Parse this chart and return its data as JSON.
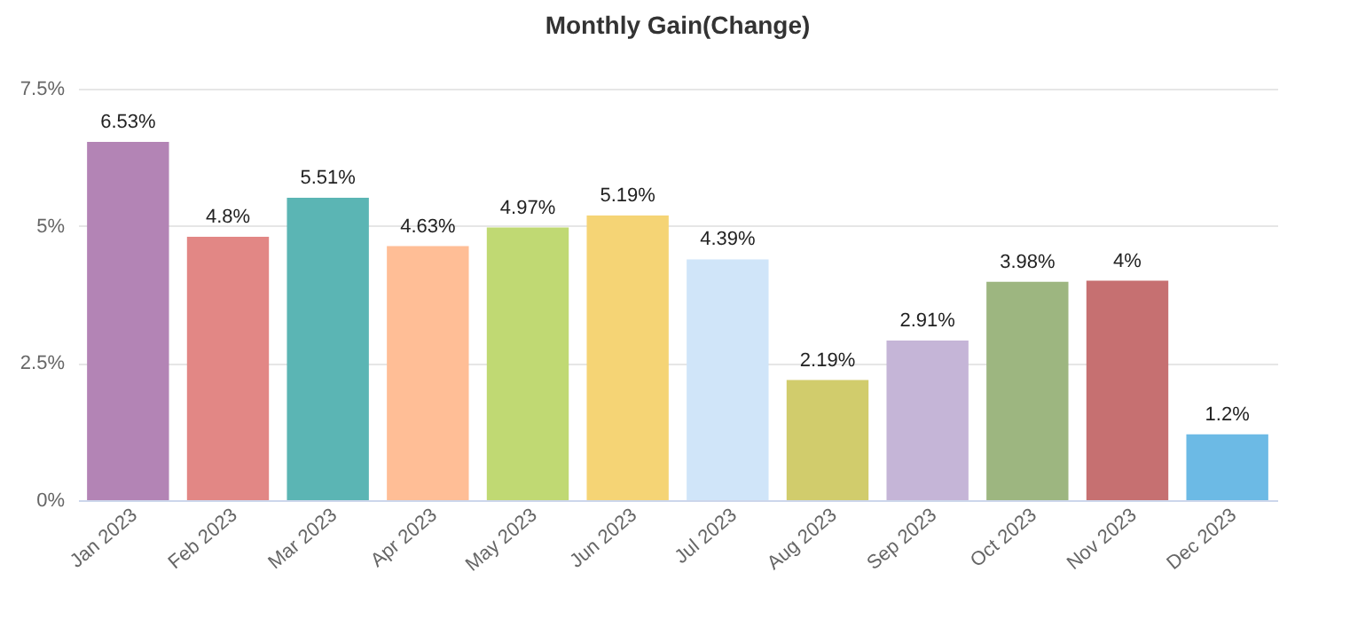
{
  "chart_data": {
    "type": "bar",
    "title": "Monthly Gain(Change)",
    "categories": [
      "Jan 2023",
      "Feb 2023",
      "Mar 2023",
      "Apr 2023",
      "May 2023",
      "Jun 2023",
      "Jul 2023",
      "Aug 2023",
      "Sep 2023",
      "Oct 2023",
      "Nov 2023",
      "Dec 2023"
    ],
    "values": [
      6.53,
      4.8,
      5.51,
      4.63,
      4.97,
      5.19,
      4.39,
      2.19,
      2.91,
      3.98,
      4,
      1.2
    ],
    "colors": [
      "#b384b5",
      "#e28785",
      "#5bb5b4",
      "#ffbe96",
      "#c0d973",
      "#f5d475",
      "#d0e5f9",
      "#d1cc6c",
      "#c5b5d7",
      "#9db680",
      "#c67071",
      "#6cbae5"
    ],
    "value_labels": [
      "6.53%",
      "4.8%",
      "5.51%",
      "4.63%",
      "4.97%",
      "5.19%",
      "4.39%",
      "2.19%",
      "2.91%",
      "3.98%",
      "4%",
      "1.2%"
    ],
    "ylim": [
      0,
      7.5
    ],
    "yticks": [
      {
        "value": 0,
        "label": "0%"
      },
      {
        "value": 2.5,
        "label": "2.5%"
      },
      {
        "value": 5,
        "label": "5%"
      },
      {
        "value": 7.5,
        "label": "7.5%"
      }
    ],
    "grid": "y"
  }
}
